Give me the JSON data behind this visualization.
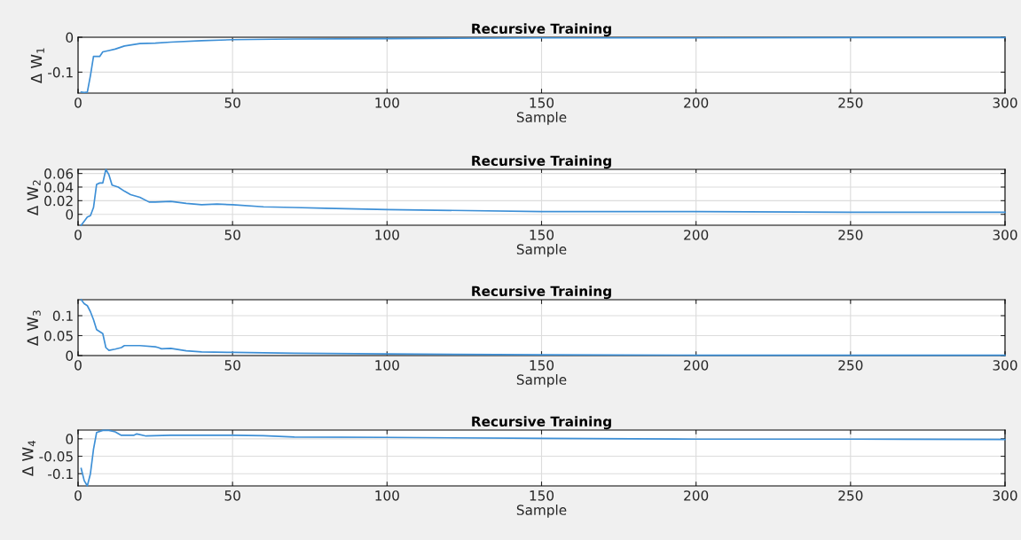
{
  "chart_data": [
    {
      "type": "line",
      "title": "Recursive Training",
      "xlabel": "Sample",
      "ylabel": "Δ W$_{1}$",
      "xlim": [
        0,
        300
      ],
      "xticks": [
        0,
        50,
        100,
        150,
        200,
        250,
        300
      ],
      "ylim": [
        -0.16,
        0
      ],
      "yticks": [
        -0.1,
        0
      ],
      "grid": true,
      "series": [
        {
          "color": "#3d8fd6",
          "x": [
            1,
            2,
            3,
            4,
            5,
            7,
            8,
            10,
            12,
            15,
            20,
            25,
            30,
            40,
            50,
            70,
            100,
            150,
            200,
            250,
            300
          ],
          "values": [
            -0.157,
            -0.158,
            -0.157,
            -0.11,
            -0.055,
            -0.055,
            -0.042,
            -0.038,
            -0.034,
            -0.025,
            -0.018,
            -0.017,
            -0.014,
            -0.01,
            -0.007,
            -0.005,
            -0.004,
            -0.002,
            -0.002,
            -0.001,
            -0.001
          ]
        }
      ]
    },
    {
      "type": "line",
      "title": "Recursive Training",
      "xlabel": "Sample",
      "ylabel": "Δ W$_{2}$",
      "xlim": [
        0,
        300
      ],
      "xticks": [
        0,
        50,
        100,
        150,
        200,
        250,
        300
      ],
      "ylim": [
        -0.016,
        0.066
      ],
      "yticks": [
        0,
        0.02,
        0.04,
        0.06
      ],
      "grid": true,
      "series": [
        {
          "color": "#3d8fd6",
          "x": [
            1,
            2,
            3,
            4,
            5,
            6,
            7,
            8,
            9,
            10,
            11,
            13,
            15,
            17,
            20,
            23,
            25,
            30,
            35,
            40,
            45,
            50,
            60,
            70,
            80,
            100,
            150,
            200,
            250,
            300
          ],
          "values": [
            -0.016,
            -0.01,
            -0.004,
            -0.002,
            0.01,
            0.044,
            0.046,
            0.046,
            0.066,
            0.058,
            0.043,
            0.04,
            0.034,
            0.029,
            0.025,
            0.018,
            0.018,
            0.019,
            0.016,
            0.014,
            0.015,
            0.014,
            0.011,
            0.01,
            0.009,
            0.007,
            0.004,
            0.004,
            0.003,
            0.003
          ]
        }
      ]
    },
    {
      "type": "line",
      "title": "Recursive Training",
      "xlabel": "Sample",
      "ylabel": "Δ W$_{3}$",
      "xlim": [
        0,
        300
      ],
      "xticks": [
        0,
        50,
        100,
        150,
        200,
        250,
        300
      ],
      "ylim": [
        0,
        0.14
      ],
      "yticks": [
        0,
        0.05,
        0.1
      ],
      "grid": true,
      "series": [
        {
          "color": "#3d8fd6",
          "x": [
            1,
            2,
            3,
            4,
            5,
            6,
            7,
            8,
            9,
            10,
            12,
            14,
            15,
            20,
            25,
            26,
            27,
            30,
            35,
            40,
            50,
            70,
            100,
            150,
            200,
            250,
            300
          ],
          "values": [
            0.14,
            0.13,
            0.125,
            0.11,
            0.09,
            0.065,
            0.06,
            0.055,
            0.02,
            0.013,
            0.016,
            0.02,
            0.025,
            0.025,
            0.022,
            0.02,
            0.017,
            0.018,
            0.012,
            0.009,
            0.008,
            0.006,
            0.004,
            0.002,
            0.001,
            0.001,
            0.001
          ]
        }
      ]
    },
    {
      "type": "line",
      "title": "Recursive Training",
      "xlabel": "Sample",
      "ylabel": "Δ W$_{4}$",
      "xlim": [
        0,
        300
      ],
      "xticks": [
        0,
        50,
        100,
        150,
        200,
        250,
        300
      ],
      "ylim": [
        -0.135,
        0.025
      ],
      "yticks": [
        -0.1,
        -0.05,
        0
      ],
      "grid": true,
      "series": [
        {
          "color": "#3d8fd6",
          "x": [
            1,
            2,
            3,
            4,
            5,
            6,
            8,
            10,
            12,
            14,
            18,
            19,
            22,
            30,
            40,
            50,
            60,
            70,
            100,
            150,
            200,
            250,
            300
          ],
          "values": [
            -0.085,
            -0.12,
            -0.135,
            -0.1,
            -0.03,
            0.018,
            0.024,
            0.024,
            0.02,
            0.01,
            0.01,
            0.014,
            0.008,
            0.01,
            0.01,
            0.01,
            0.009,
            0.005,
            0.004,
            0.001,
            -0.001,
            -0.001,
            -0.002
          ]
        }
      ]
    }
  ]
}
